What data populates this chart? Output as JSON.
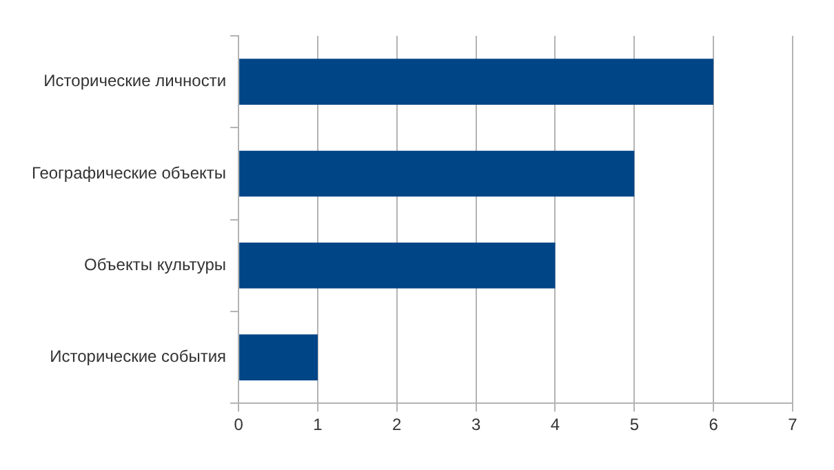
{
  "chart_data": {
    "type": "bar",
    "orientation": "horizontal",
    "categories": [
      "Исторические личности",
      "Географические объекты",
      "Объекты культуры",
      "Исторические события"
    ],
    "values": [
      6,
      5,
      4,
      1
    ],
    "color": "#004586",
    "xlim": [
      0,
      7
    ],
    "xticks": [
      0,
      1,
      2,
      3,
      4,
      5,
      6,
      7
    ],
    "grid": "x",
    "legend": false
  }
}
